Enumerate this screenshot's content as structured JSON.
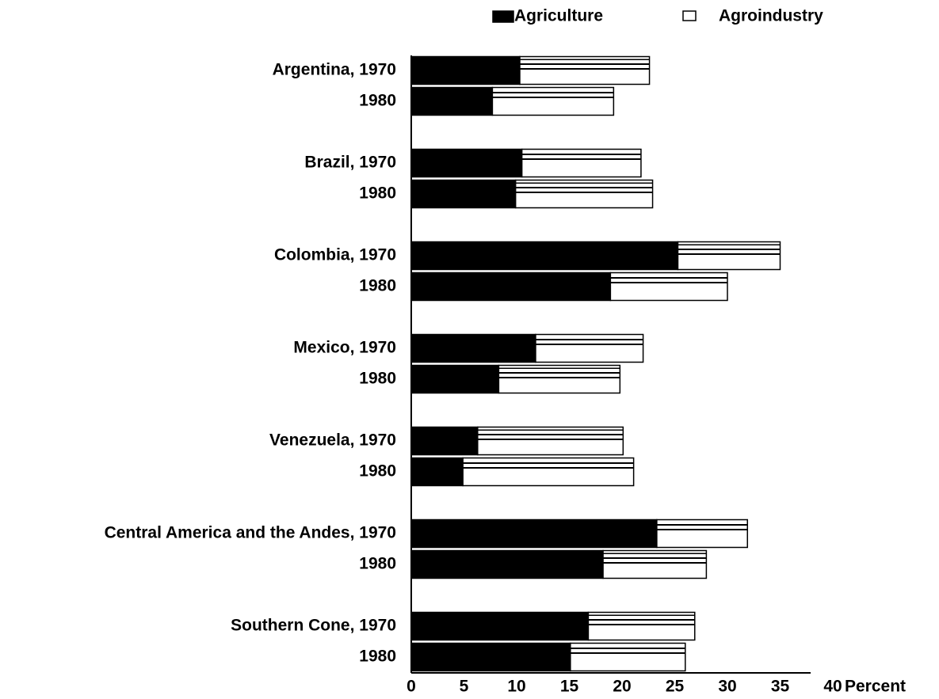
{
  "chart_data": {
    "type": "barh_stacked",
    "xlabel": "Percent",
    "categories": [
      "Argentina, 1970",
      "1980",
      "Brazil, 1970",
      "1980",
      "Colombia, 1970",
      "1980",
      "Mexico, 1970",
      "1980",
      "Venezuela, 1970",
      "1980",
      "Central America and the Andes, 1970",
      "1980",
      "Southern Cone, 1970",
      "1980"
    ],
    "series": [
      {
        "name": "Agriculture",
        "color": "#000000",
        "values": [
          10.3,
          7.7,
          10.5,
          9.9,
          25.3,
          18.9,
          11.8,
          8.3,
          6.3,
          4.9,
          23.3,
          18.2,
          16.8,
          15.1
        ]
      },
      {
        "name": "Agroindustry",
        "color": "#ffffff",
        "values": [
          12.3,
          11.5,
          11.3,
          13.0,
          9.7,
          11.1,
          10.2,
          11.5,
          13.8,
          16.2,
          8.6,
          9.8,
          10.1,
          10.9
        ]
      }
    ],
    "xlim": [
      0,
      40
    ],
    "xticks": [
      0,
      5,
      10,
      15,
      20,
      25,
      30,
      35,
      40
    ],
    "legend": "top"
  }
}
